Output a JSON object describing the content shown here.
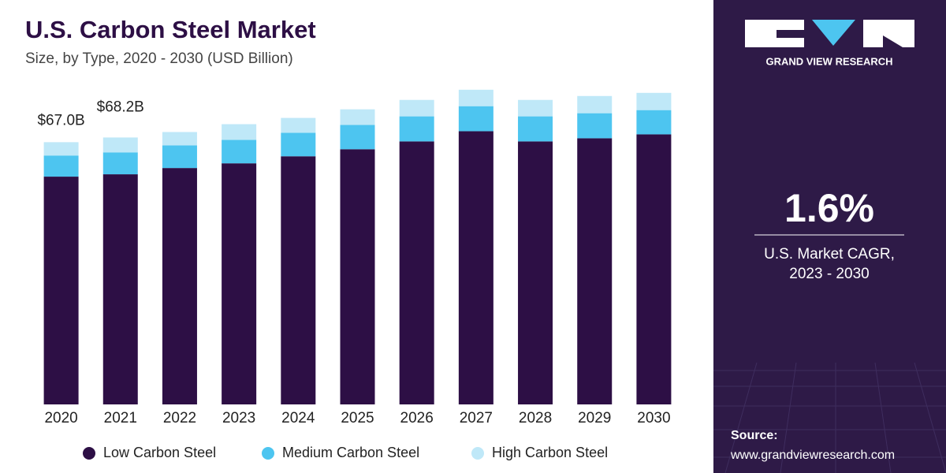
{
  "chart_data": {
    "type": "stacked_bar",
    "title": "U.S. Carbon Steel Market",
    "subtitle": "Size, by Type, 2020 - 2030 (USD Billion)",
    "categories": [
      "2020",
      "2021",
      "2022",
      "2023",
      "2024",
      "2025",
      "2026",
      "2027",
      "2028",
      "2029",
      "2030"
    ],
    "series": [
      {
        "name": "Low Carbon Steel",
        "color": "#2d0f45",
        "values": [
          58.2,
          58.8,
          60.4,
          61.6,
          63.4,
          65.2,
          67.2,
          69.8,
          67.2,
          68.0,
          69.0
        ]
      },
      {
        "name": "Medium Carbon Steel",
        "color": "#4dc5f0",
        "values": [
          5.4,
          5.6,
          5.8,
          6.0,
          6.0,
          6.2,
          6.4,
          6.4,
          6.4,
          6.4,
          6.2
        ]
      },
      {
        "name": "High Carbon Steel",
        "color": "#bfe8f8",
        "values": [
          3.4,
          3.8,
          3.4,
          4.0,
          3.8,
          4.0,
          4.2,
          4.2,
          4.2,
          4.4,
          4.4
        ]
      }
    ],
    "annotations": [
      {
        "x": "2020",
        "text": "$67.0B"
      },
      {
        "x": "2021",
        "text": "$68.2B"
      }
    ],
    "ylim": [
      0,
      85
    ],
    "legend": "bottom"
  },
  "panel": {
    "brand": "GRAND VIEW RESEARCH",
    "cagr": "1.6%",
    "cagr_caption": [
      "U.S. Market CAGR,",
      "2023 - 2030"
    ],
    "source_label": "Source:",
    "source_url": "www.grandviewresearch.com"
  }
}
